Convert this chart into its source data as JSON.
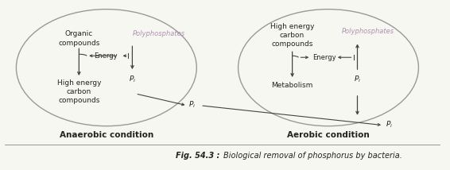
{
  "fig_width": 5.66,
  "fig_height": 2.14,
  "dpi": 100,
  "bg_color": "#f7f7f2",
  "anaerobic_label": "Anaerobic condition",
  "aerobic_label": "Aerobic condition",
  "caption_bold": "Fig. 54.3 : ",
  "caption_italic": "Biological removal of phosphorus by bacteria.",
  "polyphosphates_color": "#b090b0",
  "arrow_color": "#444444",
  "text_color": "#222222",
  "ellipse_color": "#999999"
}
